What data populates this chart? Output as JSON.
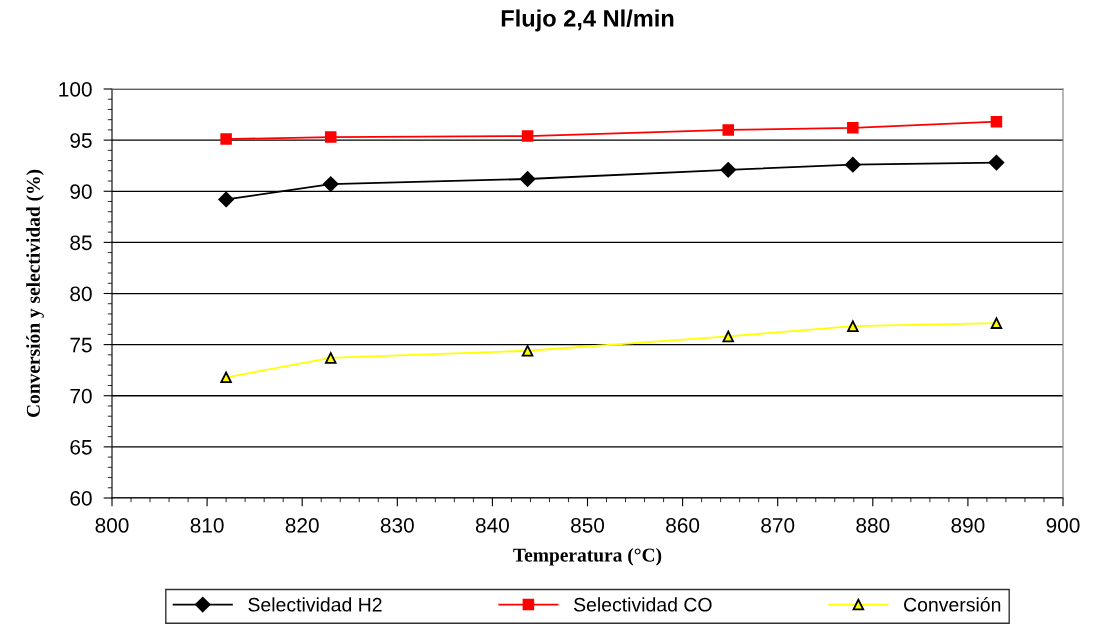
{
  "chart_data": {
    "type": "line",
    "title": "Flujo 2,4 Nl/min",
    "xlabel": "Temperatura (°C)",
    "ylabel": "Conversión y selectividad (%)",
    "x": [
      812,
      823,
      843.7,
      864.8,
      877.9,
      893
    ],
    "series": [
      {
        "name": "Selectividad H2",
        "color": "#000000",
        "marker": "diamond",
        "values": [
          89.2,
          90.7,
          91.2,
          92.1,
          92.6,
          92.8
        ]
      },
      {
        "name": "Selectividad CO",
        "color": "#ff0000",
        "marker": "square",
        "values": [
          95.1,
          95.3,
          95.4,
          96.0,
          96.2,
          96.8
        ]
      },
      {
        "name": "Conversión",
        "color": "#ffff00",
        "marker": "triangle",
        "values": [
          71.8,
          73.7,
          74.4,
          75.8,
          76.8,
          77.1
        ]
      }
    ],
    "xlim": [
      800,
      900
    ],
    "xticks": [
      800,
      810,
      820,
      830,
      840,
      850,
      860,
      870,
      880,
      890,
      900
    ],
    "ylim": [
      60,
      100
    ],
    "yticks": [
      60,
      65,
      70,
      75,
      80,
      85,
      90,
      95,
      100
    ],
    "grid": "y",
    "legend": "bottom"
  }
}
